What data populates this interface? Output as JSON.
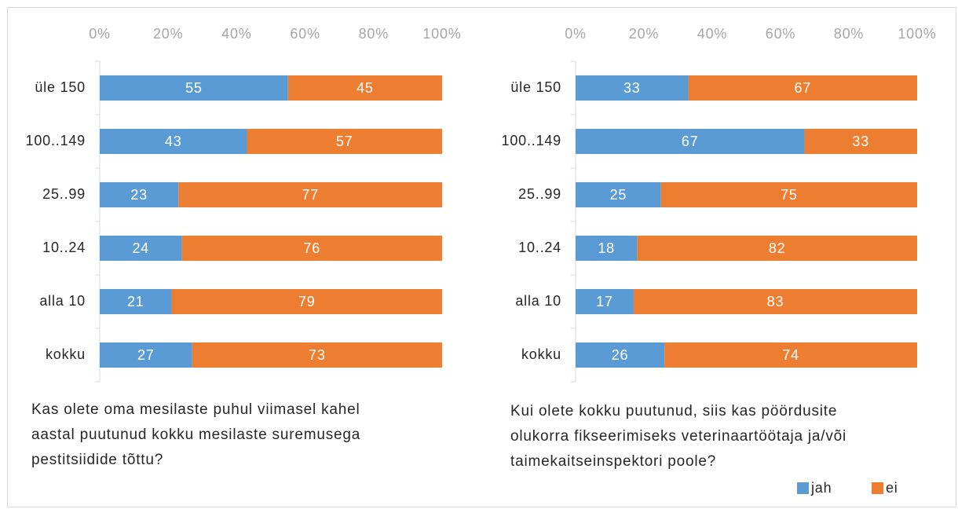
{
  "chart_data": [
    {
      "type": "bar",
      "orientation": "horizontal",
      "stacked": true,
      "title": [
        "Kas olete oma mesilaste puhul viimasel kahel",
        "aastal puutunud kokku mesilaste suremusega",
        "pestitsiidide tõttu?"
      ],
      "categories": [
        "üle 150",
        "100..149",
        "25..99",
        "10..24",
        "alla 10",
        "kokku"
      ],
      "series": [
        {
          "name": "jah",
          "color": "#5b9bd5",
          "values": [
            55,
            43,
            23,
            24,
            21,
            27
          ]
        },
        {
          "name": "ei",
          "color": "#ed7d31",
          "values": [
            45,
            57,
            77,
            76,
            79,
            73
          ]
        }
      ],
      "xlim": [
        0,
        100
      ],
      "xticks": [
        {
          "value": 0,
          "label": "0%"
        },
        {
          "value": 20,
          "label": "20%"
        },
        {
          "value": 40,
          "label": "40%"
        },
        {
          "value": 60,
          "label": "60%"
        },
        {
          "value": 80,
          "label": "80%"
        },
        {
          "value": 100,
          "label": "100%"
        }
      ]
    },
    {
      "type": "bar",
      "orientation": "horizontal",
      "stacked": true,
      "title": [
        "Kui olete kokku puutunud, siis kas pöördusite",
        "olukorra fikseerimiseks veterinaartöötaja ja/või",
        "taimekaitseinspektori poole?"
      ],
      "categories": [
        "üle 150",
        "100..149",
        "25..99",
        "10..24",
        "alla 10",
        "kokku"
      ],
      "series": [
        {
          "name": "jah",
          "color": "#5b9bd5",
          "values": [
            33,
            67,
            25,
            18,
            17,
            26
          ]
        },
        {
          "name": "ei",
          "color": "#ed7d31",
          "values": [
            67,
            33,
            75,
            82,
            83,
            74
          ]
        }
      ],
      "xlim": [
        0,
        100
      ],
      "xticks": [
        {
          "value": 0,
          "label": "0%"
        },
        {
          "value": 20,
          "label": "20%"
        },
        {
          "value": 40,
          "label": "40%"
        },
        {
          "value": 60,
          "label": "60%"
        },
        {
          "value": 80,
          "label": "80%"
        },
        {
          "value": 100,
          "label": "100%"
        }
      ]
    }
  ]
}
